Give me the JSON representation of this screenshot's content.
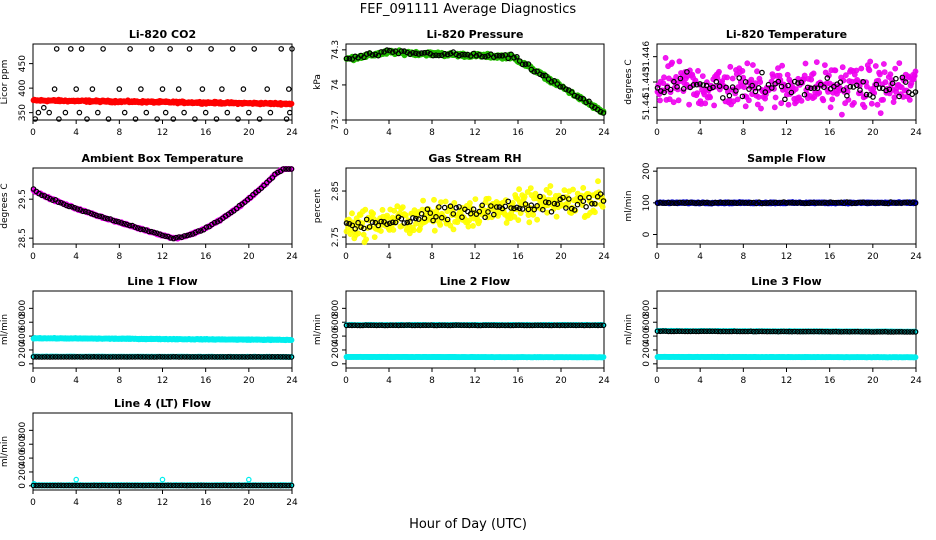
{
  "page": {
    "title": "FEF_091111  Average Diagnostics",
    "xlabel": "Hour of Day (UTC)"
  },
  "chart_data": [
    {
      "type": "scatter",
      "title": "Li-820 CO2",
      "ylabel": "Licor ppm",
      "xlim": [
        0,
        24
      ],
      "ylim": [
        335,
        490
      ],
      "xticks": [
        0,
        4,
        8,
        12,
        16,
        20,
        24
      ],
      "yticks": [
        350,
        400,
        450
      ],
      "series": [
        {
          "color": "#ff0000",
          "style": "dense",
          "shape": "flat",
          "from": 375,
          "to": 368,
          "noise": 3,
          "n": 400
        },
        {
          "color": "#000000",
          "style": "sparse",
          "points": [
            [
              0.2,
              330
            ],
            [
              0.5,
              350
            ],
            [
              1.0,
              360
            ],
            [
              1.5,
              350
            ],
            [
              2.0,
              398
            ],
            [
              2.2,
              480
            ],
            [
              2.4,
              330
            ],
            [
              3.0,
              350
            ],
            [
              3.5,
              480
            ],
            [
              4.0,
              398
            ],
            [
              4.3,
              350
            ],
            [
              4.5,
              480
            ],
            [
              5.0,
              330
            ],
            [
              5.5,
              398
            ],
            [
              6.0,
              350
            ],
            [
              6.5,
              480
            ],
            [
              7.0,
              330
            ],
            [
              8.0,
              398
            ],
            [
              8.5,
              350
            ],
            [
              9.0,
              480
            ],
            [
              9.5,
              330
            ],
            [
              10.0,
              398
            ],
            [
              10.5,
              350
            ],
            [
              11.0,
              480
            ],
            [
              11.5,
              330
            ],
            [
              12.0,
              398
            ],
            [
              12.3,
              350
            ],
            [
              12.7,
              480
            ],
            [
              13.0,
              330
            ],
            [
              13.5,
              398
            ],
            [
              14.0,
              350
            ],
            [
              14.5,
              480
            ],
            [
              15.0,
              330
            ],
            [
              15.7,
              398
            ],
            [
              16.0,
              350
            ],
            [
              16.5,
              480
            ],
            [
              17.0,
              330
            ],
            [
              17.5,
              398
            ],
            [
              18.0,
              350
            ],
            [
              18.5,
              480
            ],
            [
              19.0,
              330
            ],
            [
              19.5,
              398
            ],
            [
              20.0,
              350
            ],
            [
              20.5,
              480
            ],
            [
              21.0,
              330
            ],
            [
              21.7,
              398
            ],
            [
              22.0,
              350
            ],
            [
              23.0,
              480
            ],
            [
              23.5,
              330
            ],
            [
              23.7,
              398
            ],
            [
              23.8,
              350
            ],
            [
              24.0,
              480
            ]
          ]
        }
      ]
    },
    {
      "type": "scatter",
      "title": "Li-820 Pressure",
      "ylabel": "kPa",
      "xlim": [
        0,
        24
      ],
      "ylim": [
        73.7,
        74.35
      ],
      "xticks": [
        0,
        4,
        8,
        12,
        16,
        20,
        24
      ],
      "yticks": [
        73.7,
        74.0,
        74.3
      ],
      "series": [
        {
          "color": "#22bb00",
          "style": "dense",
          "shape": "pressure",
          "noise": 0.025,
          "n": 400
        },
        {
          "color": "#000000",
          "style": "sparse",
          "shape": "pressure",
          "noise": 0.03,
          "n": 90
        }
      ]
    },
    {
      "type": "scatter",
      "title": "Li-820 Temperature",
      "ylabel": "degrees C",
      "xlim": [
        0,
        24
      ],
      "ylim": [
        51.4385,
        51.4475
      ],
      "xticks": [
        0,
        4,
        8,
        12,
        16,
        20,
        24
      ],
      "yticks": [
        51.44,
        51.443,
        51.446
      ],
      "series": [
        {
          "color": "#ee00ee",
          "style": "noisy",
          "shape": "flat",
          "from": 51.4425,
          "to": 51.4425,
          "noise": 0.0025,
          "n": 320
        },
        {
          "color": "#000000",
          "style": "sparse",
          "shape": "flat",
          "from": 51.4425,
          "to": 51.4425,
          "noise": 0.002,
          "n": 80
        }
      ]
    },
    {
      "type": "scatter",
      "title": "Ambient Box Temperature",
      "ylabel": "degrees C",
      "xlim": [
        0,
        24
      ],
      "ylim": [
        28.35,
        30.3
      ],
      "xticks": [
        0,
        4,
        8,
        12,
        16,
        20,
        24
      ],
      "yticks": [
        28.5,
        29.5
      ],
      "series": [
        {
          "color": "#ee00ee",
          "style": "dense",
          "shape": "ambient",
          "noise": 0.03,
          "n": 300
        },
        {
          "color": "#000000",
          "style": "sparse",
          "shape": "ambient",
          "noise": 0.03,
          "n": 95
        }
      ]
    },
    {
      "type": "scatter",
      "title": "Gas Stream RH",
      "ylabel": "percent",
      "xlim": [
        0,
        24
      ],
      "ylim": [
        2.735,
        2.9
      ],
      "xticks": [
        0,
        4,
        8,
        12,
        16,
        20,
        24
      ],
      "yticks": [
        2.75,
        2.85
      ],
      "series": [
        {
          "color": "#ffff00",
          "style": "noisy",
          "shape": "rh",
          "noise": 0.03,
          "n": 330
        },
        {
          "color": "#000000",
          "style": "sparse",
          "shape": "rh",
          "noise": 0.025,
          "n": 90
        }
      ]
    },
    {
      "type": "scatter",
      "title": "Sample Flow",
      "ylabel": "ml/min",
      "xlim": [
        0,
        24
      ],
      "ylim": [
        -30,
        210
      ],
      "xticks": [
        0,
        4,
        8,
        12,
        16,
        20,
        24
      ],
      "yticks": [
        0,
        100,
        200
      ],
      "series": [
        {
          "color": "#0000cc",
          "style": "dense",
          "shape": "flat",
          "from": 100,
          "to": 100,
          "noise": 3,
          "n": 400
        },
        {
          "color": "#000000",
          "style": "sparse",
          "shape": "flat",
          "from": 100,
          "to": 100,
          "noise": 3,
          "n": 95
        }
      ]
    },
    {
      "type": "scatter",
      "title": "Line 1 Flow",
      "ylabel": "ml/min",
      "xlim": [
        0,
        24
      ],
      "ylim": [
        -60,
        1050
      ],
      "xticks": [
        0,
        4,
        8,
        12,
        16,
        20,
        24
      ],
      "yticks": [
        0,
        200,
        400,
        600,
        800
      ],
      "series": [
        {
          "color": "#00eeee",
          "style": "dense",
          "shape": "flat",
          "from": 370,
          "to": 345,
          "noise": 8,
          "n": 400
        },
        {
          "color": "#00eeee",
          "style": "dense",
          "shape": "flat",
          "from": 105,
          "to": 100,
          "noise": 3,
          "n": 200
        },
        {
          "color": "#000000",
          "style": "sparse",
          "shape": "flat",
          "from": 100,
          "to": 100,
          "noise": 2,
          "n": 95
        }
      ]
    },
    {
      "type": "scatter",
      "title": "Line 2 Flow",
      "ylabel": "ml/min",
      "xlim": [
        0,
        24
      ],
      "ylim": [
        -60,
        1050
      ],
      "xticks": [
        0,
        4,
        8,
        12,
        16,
        20,
        24
      ],
      "yticks": [
        0,
        200,
        400,
        600,
        800
      ],
      "series": [
        {
          "color": "#00eeee",
          "style": "dense",
          "shape": "flat",
          "from": 100,
          "to": 95,
          "noise": 3,
          "n": 400
        },
        {
          "color": "#00eeee",
          "style": "dense",
          "shape": "flat",
          "from": 560,
          "to": 560,
          "noise": 4,
          "n": 200
        },
        {
          "color": "#000000",
          "style": "sparse",
          "shape": "flat",
          "from": 555,
          "to": 555,
          "noise": 3,
          "n": 95
        }
      ]
    },
    {
      "type": "scatter",
      "title": "Line 3 Flow",
      "ylabel": "ml/min",
      "xlim": [
        0,
        24
      ],
      "ylim": [
        -60,
        1050
      ],
      "xticks": [
        0,
        4,
        8,
        12,
        16,
        20,
        24
      ],
      "yticks": [
        0,
        200,
        400,
        600,
        800
      ],
      "series": [
        {
          "color": "#00eeee",
          "style": "dense",
          "shape": "flat",
          "from": 100,
          "to": 95,
          "noise": 3,
          "n": 400
        },
        {
          "color": "#00eeee",
          "style": "dense",
          "shape": "flat",
          "from": 475,
          "to": 465,
          "noise": 4,
          "n": 200
        },
        {
          "color": "#000000",
          "style": "sparse",
          "shape": "flat",
          "from": 470,
          "to": 460,
          "noise": 3,
          "n": 95
        }
      ]
    },
    {
      "type": "scatter",
      "title": "Line 4 (LT) Flow",
      "ylabel": "ml/min",
      "xlim": [
        0,
        24
      ],
      "ylim": [
        -60,
        1050
      ],
      "xticks": [
        0,
        4,
        8,
        12,
        16,
        20,
        24
      ],
      "yticks": [
        0,
        200,
        400,
        600,
        800
      ],
      "series": [
        {
          "color": "#00eeee",
          "style": "dense",
          "shape": "flat",
          "from": 8,
          "to": 8,
          "noise": 2,
          "n": 400
        },
        {
          "color": "#00eeee",
          "style": "sparse",
          "points": [
            [
              4,
              90
            ],
            [
              12,
              90
            ],
            [
              20,
              90
            ],
            [
              0.1,
              30
            ]
          ]
        },
        {
          "color": "#000000",
          "style": "sparse",
          "shape": "flat",
          "from": 5,
          "to": 5,
          "noise": 2,
          "n": 95
        }
      ]
    }
  ]
}
